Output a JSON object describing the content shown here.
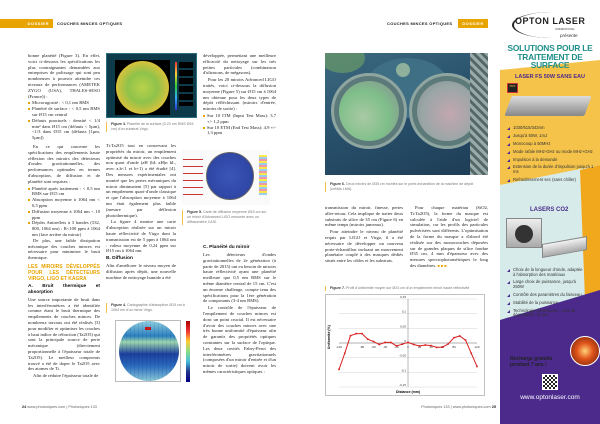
{
  "left_page": {
    "section_tag": "DOSSIER",
    "section_title": "COUCHES MINCES OPTIQUES",
    "col1": {
      "p1": "bonne planéité (Figure 3). En effet, voici ci-dessous les spécifications les plus contraignantes demandées aux entreprises de polissage qui sont peu nombreuses à pouvoir atteindre ces niveaux de performances (AMETEK ZYGO (USA), THALES-SESO (France)) :",
      "bullets1": [
        "Microrugosité : < 0,1 nm RMS",
        "Planéité de surface : < 0,5 nm RMS sur Ø15 cm central",
        "Défauts ponctuels : densité < 1/4 mm² dans Ø15 cm (défauts < 5µm), <1/3 dans Ø15 cm (défauts [1µm, 5µm])"
      ],
      "p2": "En ce qui concerne les spécifications des empilements haute réflexion des miroirs des détecteurs d'ondes gravitationnelles, des performances optimales en termes d'absorption, de diffusion et de planéité sont requises :",
      "bullets2": [
        "Planéité après traitement : < 0,5 nm RMS sur Ø15 cm",
        "Absorption moyenne à 1064 nm < 0,5 ppm",
        "Diffusion moyenne à 1064 nm < 10 ppm",
        "Dépôts Antireflets à 3 bandes (532, 800, 1064 nm) : R<100 ppm à 1064 nm (face arrière du miroir)"
      ],
      "p3": "De plus, une faible dissipation mécanique des couches minces est nécessaire pour minimiser le bruit thermique.",
      "heading": "LES MIROIRS DÉVELOPPÉS POUR LES DÉTECTEURS VIRGO, LIGO ET KAGRA",
      "subheading": "A. Bruit thermique et absorption",
      "p4": "Une source importante de bruit dans les interféromètres a été identifiée comme étant le bruit thermique des empilements de couches minces. De nombreux travaux ont été réalisés [3] pour modifier et optimiser les couches à haut indice de réfraction (Ta2O5) qui sont la principale source de perte mécanique (directement proportionnelle à l'épaisseur totale de Ta2O5). Le meilleur compromis trouvé a été de doper le Ta2O5 avec des atomes de Ti.",
      "p5": "Afin de réduire l'épaisseur totale de"
    },
    "col2": {
      "p1": "Ti:Ta2O5 tout en conservant les propriétés du miroir, un empilement optimisé du miroir avec des couches non quart d'onde (aH (bL aH)n bL, avec a,b<1 et b+1) a été étudié [4]. Des mesures expérimentales ont montré que les pertes mécaniques du miroir diminuaient [5] par rapport à un empilement quart-d'onde classique et que l'absorption moyenne à 1064 nm était également plus faible (mesure par déflexion photothermique).",
      "p2": "La figure 4 montre une carte d'absorption réalisée sur un miroir haute réflectivité de Virgo dont la transmission est de 5 ppm à 1064 nm : valeur moyenne de 0,24 ppm sur Ø15 cm à 1064 nm.",
      "subheading": "B. Diffusion",
      "p3": "Afin d'améliorer le niveau moyen de diffusion après dépôt, une nouvelle machine de nettoyage humide a été"
    },
    "col3": {
      "p1": "développée, permettant une meilleure efficacité du nettoyage sur les très petites particules (combinaison d'ultrasons, de mégasons).",
      "p2": "Pour les 20 miroirs Advanced LIGO traités, voici ci-dessous la diffusion moyenne (Figure 5) sur Ø15 cm à 1064 nm obtenue pour les deux types de dépôt réfléchissant (miroirs d'entrée, miroirs de sortie) :",
      "bullets": [
        "Sur 10 ITM (Input Test Mass): 3,7 +/- 1,2 ppm",
        "Sur 10 ETM (End Test Mass): 4,9 +/- 1,3 ppm"
      ],
      "subheading": "C. Planéité du miroir",
      "p3": "Les détecteurs d'ondes gravitationnelles de 2e génération (à partir de 2015) ont eu besoin de miroirs haute réflectivité ayant une planéité meilleure que 0,5 nm RMS sur le même diamètre central de 15 cm. C'est un énorme challenge, compte tenu des spécifications pour la 1ère génération de composants (3-4 nm RMS).",
      "p4": "Le contrôle de l'épaisseur de l'empilement de couches minces est donc un point crucial. Il est nécessaire d'avoir des couches minces avec une très bonne uniformité d'épaisseur afin de garantir des propriétés optiques constantes sur la surface de l'optique. Les deux cavités Fabry-Perot des interféromètres gravitationnels (composées d'un miroir d'entrée et d'un miroir de sortie) doivent avoir les mêmes caractéristiques optiques :"
    },
    "fig3": {
      "label": "Figure 3.",
      "text": "Planéité de la surface (0,23 nm RMS Ø15 cm) d'un substrat Virgo."
    },
    "fig4": {
      "label": "Figure 4.",
      "text": "Cartographie d'absorption Ø15 cm à 1064 nm d'un miroir Virgo."
    },
    "fig5": {
      "label": "Figure 5.",
      "text": "Carte de diffusion moyenne Ø15 cm sur un miroir d'Advanced LIGO mesurée avec un diffusomètre CASI."
    },
    "footer": {
      "page": "24",
      "text": "www.photoniques.com | Photoniques 133"
    }
  },
  "right_page": {
    "section_title": "COUCHES MINCES OPTIQUES",
    "section_tag": "DOSSIER",
    "fig6": {
      "label": "Figure 6.",
      "text": "Deux miroirs de Ø35 cm montés sur le porte-échantillon de la machine de dépôt (crédits LMA)."
    },
    "col1": {
      "p1": "transmission du miroir, finesse, pertes aller-retour. Cela implique de traiter deux substrats de silice de 35 cm (Figure 6) en même temps (miroirs jumeaux).",
      "p2": "Pour atteindre le niveau de planéité requis par LIGO et Virgo, il a été nécessaire de développer un nouveau porte-échantillon incluant un mouvement planétaire couplé à des masques dédiés situés entre les cibles et les substrats."
    },
    "col2": {
      "p1": "Pour chaque matériau (SiO2, Ti:Ta2O5), la forme du masque est calculée à l'aide d'un logiciel de simulation, car les profils des particules pulvérisées sont différents. L'optimisation de la forme du masque a d'abord été réalisée sur des monocouches déposées sur de grandes plaques de silice fondue Ø35 cm, 4 mm d'épaisseur avec des mesures spectrophotométriques le long des diamètres."
    },
    "fig7": {
      "label": "Figure 7.",
      "text": "Profil d'uniformité moyen sur Ø24 cm d'un empilement miroir haute réflectivité"
    },
    "footer": {
      "text": "Photoniques 133 | www.photoniques.com",
      "page": "25"
    }
  },
  "chart_data": {
    "type": "line",
    "xlabel": "Distance (mm)",
    "ylabel": "Uniformité (%)",
    "xlim": [
      -120,
      120
    ],
    "ylim": [
      -0.15,
      0.15
    ],
    "xticks": [
      "-120",
      "-80",
      "-60",
      "-40",
      "-20",
      "0",
      "20",
      "40",
      "60",
      "80",
      "120"
    ],
    "yticks": [
      "0,15",
      "0,1",
      "0,05",
      "0",
      "-0,05",
      "-0,1",
      "-0,15"
    ],
    "grid": true,
    "color": "#d81e1e",
    "x": [
      -120,
      -110,
      -100,
      -90,
      -80,
      -70,
      -60,
      -50,
      -40,
      -30,
      -20,
      -10,
      0,
      10,
      20,
      30,
      40,
      50,
      60,
      70,
      80,
      90,
      100,
      110,
      120
    ],
    "y": [
      -0.09,
      -0.035,
      0.025,
      0.032,
      0.032,
      0.013,
      0.005,
      -0.005,
      0.002,
      0.002,
      -0.01,
      -0.004,
      0.002,
      -0.005,
      -0.01,
      -0.007,
      -0.009,
      -0.015,
      -0.014,
      -0.003,
      0.018,
      0.024,
      0.01,
      -0.035,
      -0.08
    ]
  },
  "ad": {
    "brand": "OPTON LASER",
    "brand_sub": "INTERNATIONAL",
    "presents": "présente",
    "headline": "SOLUTIONS POUR LE TRAITEMENT DE SURFACE",
    "product1": "LASER FS 50W SANS EAU",
    "badge": "PRIX",
    "bullets1": [
      "1030/515/343nm",
      "Jusqu'à 50W, 1mJ",
      "Monocoup à 50MHz",
      "Mode rafale MHz-GHz ou mode MHz+GHz",
      "Impulsion à la demande",
      "Extension de la durée d'impulsion jusqu'à 1 ms",
      "Refroidissement sec (sans chiller)"
    ],
    "product2": "LASERS CO2",
    "bullets2": [
      "Choix de la longueur d'onde, adaptée à l'absorption des matériaux",
      "Large choix de puissance, jusqu'à 250W",
      "Contrôle des paramètres du faisceau",
      "Stabilité de la puissance",
      "Technologie Ceramicore = pas de dégradation du gaz"
    ],
    "promo": "Recharge gratuite pendant 7 ans !",
    "url": "www.optonlaser.com",
    "colors": {
      "orange": "#f2a81d",
      "purple": "#4b2a8c",
      "teal": "#1f8f8a",
      "cyan_bg": "#d7ecea"
    }
  }
}
